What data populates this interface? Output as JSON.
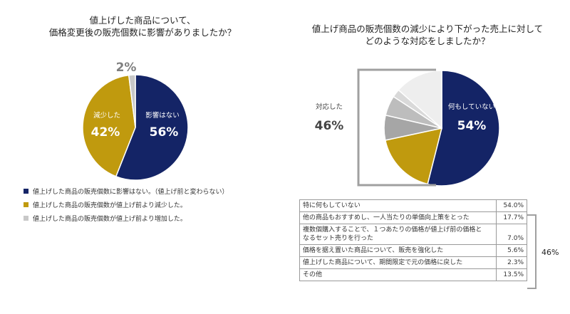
{
  "chart_data": [
    {
      "type": "pie",
      "title": "値上げした商品について、\n価格変更後の販売個数に影響がありましたか？",
      "slices": [
        {
          "label": "影響はない",
          "value": 56,
          "display": "56%",
          "color": "#142466"
        },
        {
          "label": "減少した",
          "value": 42,
          "display": "42%",
          "color": "#c09a0e"
        },
        {
          "label": "",
          "value": 2,
          "display": "2%",
          "color": "#c8c8c8"
        }
      ],
      "legend": [
        "値上げした商品の販売個数に影響はない。（値上げ前と変わらない）",
        "値上げした商品の販売個数が値上げ前より減少した。",
        "値上げした商品の販売個数が値上げ前より増加した。"
      ]
    },
    {
      "type": "pie",
      "title": "値上げ商品の販売個数の減少により下がった売上に対して\nどのような対応をしましたか？",
      "slices": [
        {
          "label": "特に何もしていない",
          "value": 54.0,
          "color": "#142466"
        },
        {
          "label": "他の商品もおすすめし、一人当たりの単価向上策をとった",
          "value": 17.7,
          "color": "#c09a0e"
        },
        {
          "label": "複数個購入することで、１つあたりの価格が値上げ前の価格となるセット売りを行った",
          "value": 7.0,
          "color": "#a6a6a6"
        },
        {
          "label": "価格を据え置いた商品について、販売を強化した",
          "value": 5.6,
          "color": "#bdbdbd"
        },
        {
          "label": "値上げした商品について、期間限定で元の価格に戻した",
          "value": 2.3,
          "color": "#d9d9d9"
        },
        {
          "label": "その他",
          "value": 13.5,
          "color": "#eeeeee"
        }
      ],
      "inner_label": "何もしていない",
      "inner_value": "54%",
      "group_label": "対応した",
      "group_value": "46%",
      "table": [
        {
          "label": "特に何もしていない",
          "value": "54.0%"
        },
        {
          "label": "他の商品もおすすめし、一人当たりの単価向上策をとった",
          "value": "17.7%"
        },
        {
          "label": "複数個購入することで、１つあたりの価格が値上げ前の価格と\nなるセット売りを行った",
          "value": "7.0%"
        },
        {
          "label": "価格を据え置いた商品について、販売を強化した",
          "value": "5.6%"
        },
        {
          "label": "値上げした商品について、期間限定で元の価格に戻した",
          "value": "2.3%"
        },
        {
          "label": "その他",
          "value": "13.5%"
        }
      ],
      "bracket_label": "46%"
    }
  ]
}
